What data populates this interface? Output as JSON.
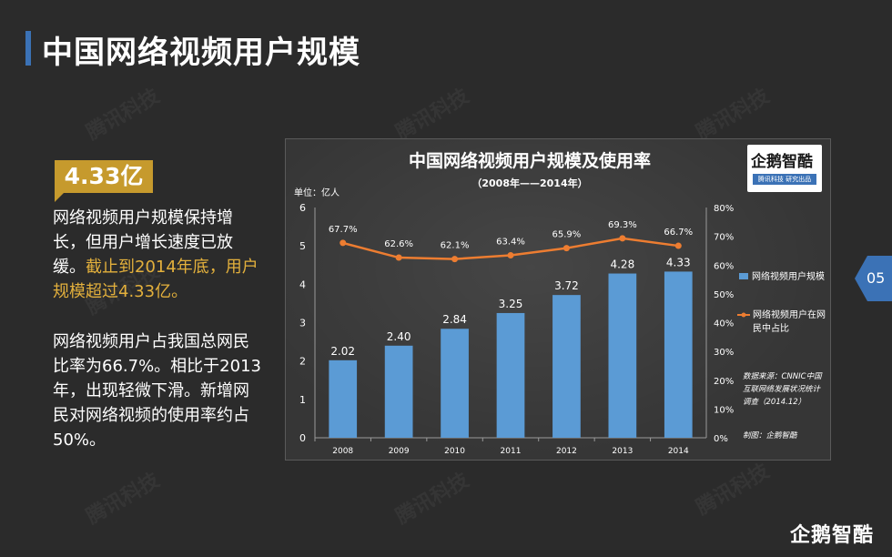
{
  "page_title": "中国网络视频用户规模",
  "watermark_text": "腾讯科技",
  "highlight": {
    "value": "4.33亿"
  },
  "paragraph1": {
    "text": "网络视频用户规模保持增长，但用户增长速度已放缓。",
    "highlight": "截止到2014年底，用户规模超过4.33亿。"
  },
  "paragraph2": {
    "text": "网络视频用户占我国总网民比率为66.7%。相比于2013年，出现轻微下滑。新增网民对网络视频的使用率约占50%。"
  },
  "page_number": "05",
  "logo": {
    "text": "企鹅智酷",
    "sub": "腾讯科技 研究出品"
  },
  "brand": "企鹅智酷",
  "colors": {
    "bar": "#5b9bd5",
    "line": "#ed7d31",
    "accent": "#c69a2d",
    "title_bar": "#3b72b6"
  },
  "chart_data": {
    "type": "bar",
    "title": "中国网络视频用户规模及使用率",
    "subtitle": "（2008年——2014年）",
    "unit_label": "单位：亿人",
    "categories": [
      "2008",
      "2009",
      "2010",
      "2011",
      "2012",
      "2013",
      "2014"
    ],
    "series": [
      {
        "name": "网络视频用户规模",
        "type": "bar",
        "values": [
          2.02,
          2.4,
          2.84,
          3.25,
          3.72,
          4.28,
          4.33
        ],
        "labels": [
          "2.02",
          "2.40",
          "2.84",
          "3.25",
          "3.72",
          "4.28",
          "4.33"
        ]
      },
      {
        "name": "网络视频用户在网民中占比",
        "type": "line",
        "axis": "right",
        "values": [
          67.7,
          62.6,
          62.1,
          63.4,
          65.9,
          69.3,
          66.7
        ],
        "labels": [
          "67.7%",
          "62.6%",
          "62.1%",
          "63.4%",
          "65.9%",
          "69.3%",
          "66.7%"
        ]
      }
    ],
    "ylim": [
      0,
      6
    ],
    "yticks": [
      "0",
      "1",
      "2",
      "3",
      "4",
      "5",
      "6"
    ],
    "y2lim": [
      0,
      80
    ],
    "y2ticks": [
      "0%",
      "10%",
      "20%",
      "30%",
      "40%",
      "50%",
      "60%",
      "70%",
      "80%"
    ],
    "legend_position": "right",
    "grid": false,
    "source_note": "数据来源：CNNIC中国互联网络发展状况统计调查（2014.12）",
    "source_lines": [
      "数据来源：CNNIC中国",
      "互联网络发展状况统计",
      "调查（2014.12）"
    ],
    "maker_note": "制图：企鹅智酷"
  }
}
